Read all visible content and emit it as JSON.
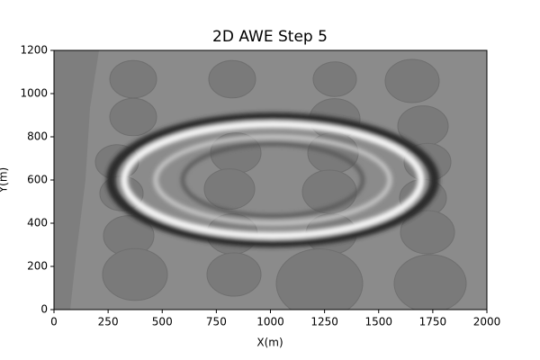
{
  "chart_data": {
    "type": "image",
    "title": "2D AWE Step 5",
    "xlabel": "X(m)",
    "ylabel": "Y(m)",
    "xlim": [
      0,
      2000
    ],
    "ylim": [
      0,
      1200
    ],
    "xticks": [
      0,
      250,
      500,
      750,
      1000,
      1250,
      1500,
      1750,
      2000
    ],
    "yticks": [
      0,
      200,
      400,
      600,
      800,
      1000,
      1200
    ]
  }
}
